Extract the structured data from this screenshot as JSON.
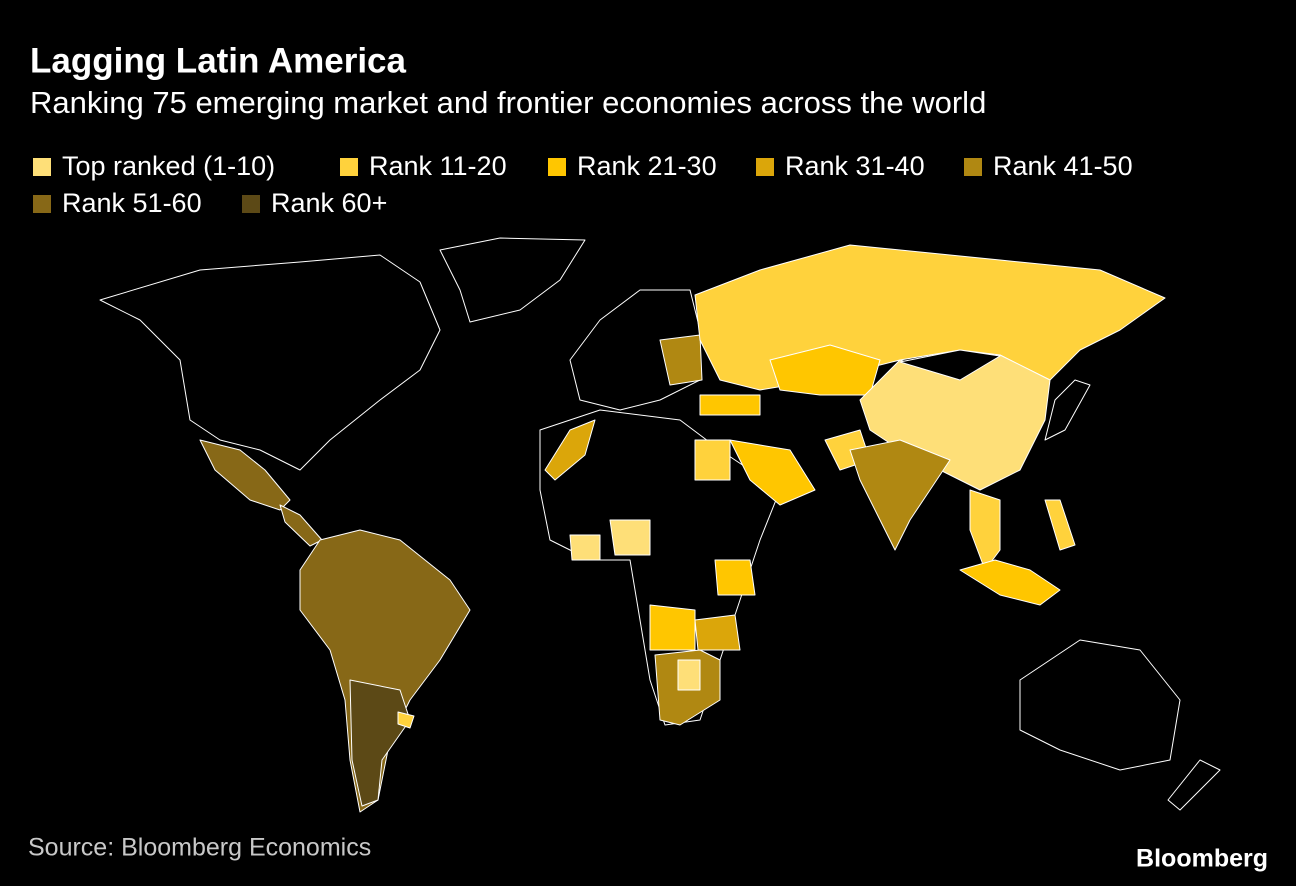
{
  "header": {
    "title": "Lagging Latin America",
    "subtitle": "Ranking 75 emerging market and frontier economies across the world"
  },
  "legend": {
    "items": [
      {
        "label": "Top ranked (1-10)",
        "color": "#fedf78"
      },
      {
        "label": "Rank 11-20",
        "color": "#ffd23c"
      },
      {
        "label": "Rank 21-30",
        "color": "#ffc600"
      },
      {
        "label": "Rank 31-40",
        "color": "#dba60a"
      },
      {
        "label": "Rank 41-50",
        "color": "#b08812"
      },
      {
        "label": "Rank 51-60",
        "color": "#876817"
      },
      {
        "label": "Rank 60+",
        "color": "#5c4916"
      }
    ]
  },
  "footer": {
    "source": "Source: Bloomberg Economics",
    "logo": "Bloomberg"
  }
}
